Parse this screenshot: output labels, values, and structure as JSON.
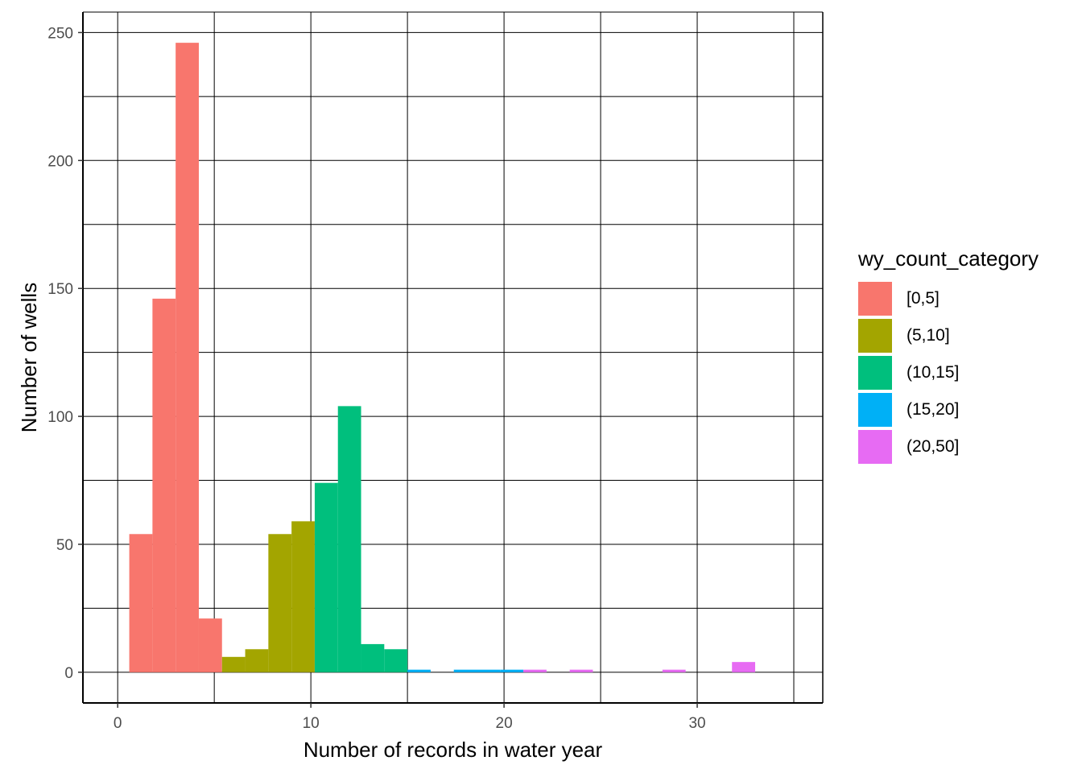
{
  "chart_data": {
    "type": "bar",
    "subtype": "histogram",
    "title": "",
    "xlabel": "Number of records in water year",
    "ylabel": "Number of wells",
    "xlim": [
      -1.8,
      36.5
    ],
    "ylim": [
      -12,
      258
    ],
    "xticks": [
      0,
      10,
      20,
      30
    ],
    "yticks": [
      0,
      50,
      100,
      150,
      200,
      250
    ],
    "grid": true,
    "bin_width": 1.2,
    "legend": {
      "title": "wy_count_category",
      "placement": "right",
      "entries": [
        {
          "label": "[0,5]",
          "color": "#F8766D"
        },
        {
          "label": "(5,10]",
          "color": "#A3A500"
        },
        {
          "label": "(10,15]",
          "color": "#00BF7D"
        },
        {
          "label": "(15,20]",
          "color": "#00B0F6"
        },
        {
          "label": "(20,50]",
          "color": "#E76BF3"
        }
      ]
    },
    "series": [
      {
        "name": "[0,5]",
        "bins": [
          {
            "x0": 0.6,
            "x1": 1.8,
            "count": 54
          },
          {
            "x0": 1.8,
            "x1": 3.0,
            "count": 146
          },
          {
            "x0": 3.0,
            "x1": 4.2,
            "count": 246
          },
          {
            "x0": 4.2,
            "x1": 5.4,
            "count": 21
          }
        ]
      },
      {
        "name": "(5,10]",
        "bins": [
          {
            "x0": 5.4,
            "x1": 6.6,
            "count": 6
          },
          {
            "x0": 6.6,
            "x1": 7.8,
            "count": 9
          },
          {
            "x0": 7.8,
            "x1": 9.0,
            "count": 54
          },
          {
            "x0": 9.0,
            "x1": 10.2,
            "count": 59
          }
        ]
      },
      {
        "name": "(10,15]",
        "bins": [
          {
            "x0": 10.2,
            "x1": 11.4,
            "count": 74
          },
          {
            "x0": 11.4,
            "x1": 12.6,
            "count": 104
          },
          {
            "x0": 12.6,
            "x1": 13.8,
            "count": 11
          },
          {
            "x0": 13.8,
            "x1": 15.0,
            "count": 9
          }
        ]
      },
      {
        "name": "(15,20]",
        "bins": [
          {
            "x0": 15.0,
            "x1": 16.2,
            "count": 1
          },
          {
            "x0": 17.4,
            "x1": 18.6,
            "count": 1
          },
          {
            "x0": 18.6,
            "x1": 19.8,
            "count": 1
          },
          {
            "x0": 19.8,
            "x1": 21.0,
            "count": 1
          }
        ]
      },
      {
        "name": "(20,50]",
        "bins": [
          {
            "x0": 21.0,
            "x1": 22.2,
            "count": 1
          },
          {
            "x0": 23.4,
            "x1": 24.6,
            "count": 1
          },
          {
            "x0": 28.2,
            "x1": 29.4,
            "count": 1
          },
          {
            "x0": 31.8,
            "x1": 33.0,
            "count": 4
          }
        ]
      }
    ]
  }
}
